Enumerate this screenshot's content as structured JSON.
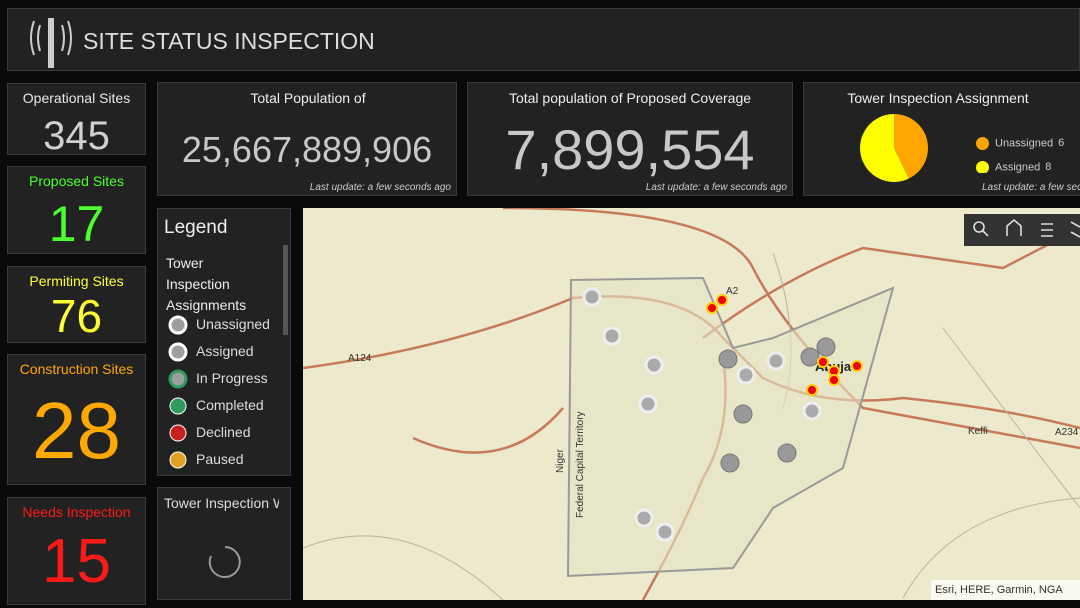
{
  "header": {
    "title": "SITE STATUS INSPECTION"
  },
  "indicators": [
    {
      "label": "Operational Sites",
      "value": "345",
      "color": "#d0d0d0",
      "label_color": "#e8e8e8"
    },
    {
      "label": "Proposed Sites",
      "value": "17",
      "color": "#4cff2e",
      "label_color": "#4cff2e"
    },
    {
      "label": "Permiting Sites",
      "value": "76",
      "color": "#ffff33",
      "label_color": "#ffff33"
    },
    {
      "label": "Construction Sites",
      "value": "28",
      "color": "#ffa800",
      "label_color": "#ffa800"
    },
    {
      "label": "Needs Inspection",
      "value": "15",
      "color": "#ff1a1a",
      "label_color": "#ff1a1a"
    }
  ],
  "population_card": {
    "title": "Total Population of Operating Coverage",
    "value": "25,667,889,906",
    "footnote": "Last update: a few seconds ago"
  },
  "coverage_card": {
    "title": "Total population of Proposed Coverage",
    "value": "7,899,554",
    "footnote": "Last update: a few seconds ago"
  },
  "chart_data": {
    "type": "pie",
    "title": "Tower Inspection Assignment",
    "footnote": "Last update: a few seconds ago",
    "categories": [
      "Unassigned",
      "Assigned"
    ],
    "values": [
      6,
      8
    ],
    "colors": [
      "#ffa500",
      "#ffff00"
    ]
  },
  "legend_panel": {
    "title": "Legend",
    "heading": "Tower Inspection Assignments",
    "items": [
      {
        "label": "Unassigned",
        "color": "#9e9e9e"
      },
      {
        "label": "Assigned",
        "color": "#ffffff"
      },
      {
        "label": "In Progress",
        "color": "#2e9a5e"
      },
      {
        "label": "Completed",
        "color": "#2e9a5e"
      },
      {
        "label": "Declined",
        "color": "#c62020"
      },
      {
        "label": "Paused",
        "color": "#e0a020"
      }
    ]
  },
  "work_panel": {
    "title": "Tower Inspection Work Orders"
  },
  "map": {
    "labels": [
      "A2",
      "A124",
      "Abuja",
      "Keffi",
      "A234",
      "Niger",
      "Federal Capital Territory"
    ],
    "attribution": "Esri, HERE, Garmin, NGA"
  }
}
